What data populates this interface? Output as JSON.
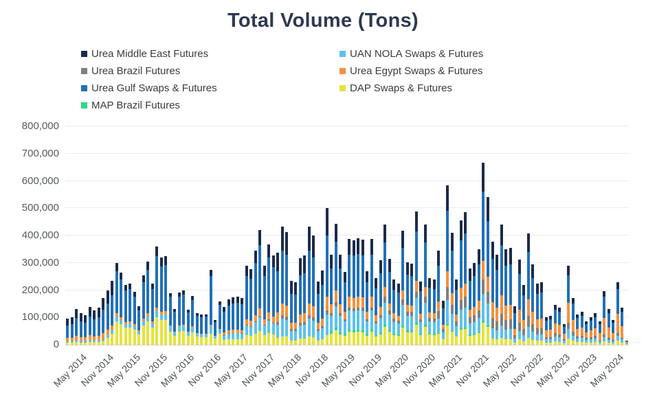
{
  "chart_data": {
    "type": "bar",
    "stacked": true,
    "title": "Total Volume (Tons)",
    "values_unit": "tons",
    "y_axis": {
      "min": 0,
      "max": 800000,
      "tick_interval": 100000,
      "tick_labels": [
        "0",
        "100,000",
        "200,000",
        "300,000",
        "400,000",
        "500,000",
        "600,000",
        "700,000",
        "800,000"
      ]
    },
    "x_axis": {
      "tick_labels": [
        "May 2014",
        "Nov 2014",
        "May 2015",
        "Nov 2015",
        "May 2016",
        "Nov 2016",
        "May 2017",
        "Nov 2017",
        "May 2018",
        "Nov 2018",
        "May 2019",
        "Nov 2019",
        "May 2020",
        "Nov 2020",
        "May 2021",
        "Nov 2021",
        "May 2022",
        "Nov 2022",
        "May 2023",
        "Nov 2023",
        "May 2024"
      ]
    },
    "categories": [
      "Feb 2014",
      "Mar 2014",
      "Apr 2014",
      "May 2014",
      "Jun 2014",
      "Jul 2014",
      "Aug 2014",
      "Sep 2014",
      "Oct 2014",
      "Nov 2014",
      "Dec 2014",
      "Jan 2015",
      "Feb 2015",
      "Mar 2015",
      "Apr 2015",
      "May 2015",
      "Jun 2015",
      "Jul 2015",
      "Aug 2015",
      "Sep 2015",
      "Oct 2015",
      "Nov 2015",
      "Dec 2015",
      "Jan 2016",
      "Feb 2016",
      "Mar 2016",
      "Apr 2016",
      "May 2016",
      "Jun 2016",
      "Jul 2016",
      "Aug 2016",
      "Sep 2016",
      "Oct 2016",
      "Nov 2016",
      "Dec 2016",
      "Jan 2017",
      "Feb 2017",
      "Mar 2017",
      "Apr 2017",
      "May 2017",
      "Jun 2017",
      "Jul 2017",
      "Aug 2017",
      "Sep 2017",
      "Oct 2017",
      "Nov 2017",
      "Dec 2017",
      "Jan 2018",
      "Feb 2018",
      "Mar 2018",
      "Apr 2018",
      "May 2018",
      "Jun 2018",
      "Jul 2018",
      "Aug 2018",
      "Sep 2018",
      "Oct 2018",
      "Nov 2018",
      "Dec 2018",
      "Jan 2019",
      "Feb 2019",
      "Mar 2019",
      "Apr 2019",
      "May 2019",
      "Jun 2019",
      "Jul 2019",
      "Aug 2019",
      "Sep 2019",
      "Oct 2019",
      "Nov 2019",
      "Dec 2019",
      "Jan 2020",
      "Feb 2020",
      "Mar 2020",
      "Apr 2020",
      "May 2020",
      "Jun 2020",
      "Jul 2020",
      "Aug 2020",
      "Sep 2020",
      "Oct 2020",
      "Nov 2020",
      "Dec 2020",
      "Jan 2021",
      "Feb 2021",
      "Mar 2021",
      "Apr 2021",
      "May 2021",
      "Jun 2021",
      "Jul 2021",
      "Aug 2021",
      "Sep 2021",
      "Oct 2021",
      "Nov 2021",
      "Dec 2021",
      "Jan 2022",
      "Feb 2022",
      "Mar 2022",
      "Apr 2022",
      "May 2022",
      "Jun 2022",
      "Jul 2022",
      "Aug 2022",
      "Sep 2022",
      "Oct 2022",
      "Nov 2022",
      "Dec 2022",
      "Jan 2023",
      "Feb 2023",
      "Mar 2023",
      "Apr 2023",
      "May 2023",
      "Jun 2023",
      "Jul 2023",
      "Aug 2023",
      "Sep 2023",
      "Oct 2023",
      "Nov 2023",
      "Dec 2023",
      "Jan 2024",
      "Feb 2024",
      "Mar 2024",
      "Apr 2024",
      "May 2024",
      "Jun 2024",
      "Jul 2024"
    ],
    "stack_order": "bottom_to_top",
    "series": [
      {
        "name": "DAP Swaps & Futures",
        "color": "#e6e33c",
        "values": [
          7000,
          7000,
          9000,
          8000,
          8000,
          10000,
          9000,
          9000,
          12000,
          25000,
          40000,
          85000,
          75000,
          62000,
          63000,
          55000,
          39000,
          71000,
          85000,
          63000,
          101000,
          90000,
          91000,
          48000,
          33000,
          48000,
          50000,
          32000,
          45000,
          29000,
          28000,
          28000,
          40000,
          23000,
          40000,
          17000,
          20000,
          21000,
          21000,
          20000,
          35000,
          33000,
          41000,
          50000,
          35000,
          44000,
          39000,
          24000,
          30000,
          29000,
          16000,
          16000,
          22000,
          23000,
          30000,
          28000,
          16000,
          19000,
          35000,
          40000,
          53000,
          39000,
          32000,
          47000,
          46000,
          47000,
          46000,
          32000,
          47000,
          29000,
          37000,
          66000,
          47000,
          36000,
          34000,
          63000,
          45000,
          45000,
          73000,
          35000,
          66000,
          37000,
          36000,
          41000,
          19000,
          70000,
          49000,
          29000,
          55000,
          58000,
          34000,
          36000,
          42000,
          80000,
          65000,
          23000,
          20000,
          26000,
          21000,
          21000,
          8000,
          19000,
          13000,
          24000,
          18000,
          14000,
          14000,
          8000,
          8000,
          12000,
          11000,
          6000,
          23000,
          14000,
          9000,
          10000,
          7000,
          8000,
          9000,
          5000,
          12000,
          8000,
          5000,
          14000,
          8000,
          3000
        ]
      },
      {
        "name": "MAP Brazil Futures",
        "color": "#2bd889",
        "values": [
          0,
          0,
          0,
          0,
          0,
          0,
          0,
          0,
          0,
          0,
          0,
          0,
          0,
          0,
          0,
          0,
          0,
          0,
          0,
          0,
          0,
          0,
          0,
          0,
          0,
          0,
          0,
          0,
          0,
          0,
          0,
          0,
          0,
          0,
          0,
          0,
          0,
          0,
          0,
          0,
          0,
          0,
          0,
          0,
          0,
          0,
          0,
          0,
          0,
          0,
          0,
          0,
          0,
          0,
          0,
          0,
          0,
          0,
          0,
          7000,
          9000,
          7000,
          5000,
          8000,
          8000,
          8000,
          8000,
          5000,
          8000,
          5000,
          6000,
          9000,
          6000,
          5000,
          4000,
          8000,
          6000,
          6000,
          10000,
          5000,
          9000,
          5000,
          5000,
          3000,
          2000,
          6000,
          4000,
          2000,
          5000,
          5000,
          3000,
          3000,
          4000,
          7000,
          5000,
          0,
          0,
          0,
          0,
          0,
          0,
          0,
          0,
          0,
          0,
          0,
          0,
          0,
          0,
          0,
          0,
          0,
          0,
          0,
          0,
          0,
          0,
          0,
          0,
          0,
          0,
          0,
          0,
          0,
          0,
          0
        ]
      },
      {
        "name": "UAN NOLA Swaps & Futures",
        "color": "#5bc2ee",
        "values": [
          5000,
          5000,
          6000,
          6000,
          5000,
          7000,
          6000,
          7000,
          8000,
          10000,
          12000,
          18000,
          16000,
          13000,
          14000,
          12000,
          8000,
          15000,
          18000,
          14000,
          22000,
          19000,
          20000,
          19000,
          13000,
          19000,
          20000,
          13000,
          18000,
          12000,
          11000,
          11000,
          27000,
          9000,
          16000,
          17000,
          20000,
          21000,
          21000,
          20000,
          35000,
          33000,
          41000,
          50000,
          35000,
          44000,
          39000,
          50000,
          65000,
          62000,
          35000,
          35000,
          48000,
          49000,
          65000,
          60000,
          35000,
          41000,
          75000,
          59000,
          80000,
          59000,
          48000,
          70000,
          69000,
          70000,
          69000,
          49000,
          70000,
          44000,
          56000,
          79000,
          57000,
          43000,
          40000,
          75000,
          55000,
          54000,
          88000,
          42000,
          79000,
          44000,
          43000,
          52000,
          24000,
          88000,
          61000,
          36000,
          68000,
          73000,
          42000,
          45000,
          52000,
          100000,
          81000,
          38000,
          33000,
          44000,
          35000,
          36000,
          14000,
          31000,
          22000,
          41000,
          29000,
          23000,
          23000,
          12000,
          13000,
          18000,
          16000,
          9000,
          35000,
          20000,
          13000,
          14000,
          10000,
          12000,
          14000,
          7000,
          16000,
          10000,
          7000,
          18000,
          11000,
          2000
        ]
      },
      {
        "name": "Urea Brazil Futures",
        "color": "#808080",
        "values": [
          0,
          0,
          0,
          0,
          0,
          0,
          0,
          0,
          0,
          0,
          0,
          0,
          0,
          0,
          0,
          0,
          0,
          0,
          0,
          0,
          0,
          0,
          0,
          0,
          0,
          0,
          0,
          0,
          0,
          0,
          0,
          0,
          0,
          0,
          0,
          1000,
          2000,
          2000,
          2000,
          2000,
          3000,
          3000,
          3000,
          4000,
          3000,
          4000,
          3000,
          10000,
          13000,
          12000,
          7000,
          7000,
          10000,
          10000,
          13000,
          12000,
          7000,
          8000,
          15000,
          10000,
          13000,
          10000,
          8000,
          12000,
          11000,
          12000,
          12000,
          8000,
          12000,
          7000,
          9000,
          22000,
          16000,
          12000,
          11000,
          21000,
          15000,
          15000,
          24000,
          12000,
          22000,
          12000,
          12000,
          28000,
          13000,
          47000,
          33000,
          19000,
          36000,
          39000,
          22000,
          24000,
          28000,
          53000,
          43000,
          38000,
          33000,
          44000,
          35000,
          36000,
          14000,
          31000,
          22000,
          41000,
          29000,
          23000,
          23000,
          8000,
          8000,
          12000,
          11000,
          6000,
          23000,
          14000,
          9000,
          10000,
          7000,
          8000,
          9000,
          4000,
          10000,
          7000,
          5000,
          12000,
          7000,
          0
        ]
      },
      {
        "name": "Urea Egypt Swaps & Futures",
        "color": "#f6913d",
        "values": [
          12000,
          13000,
          17000,
          15000,
          14000,
          18000,
          16000,
          17000,
          22000,
          20000,
          18000,
          12000,
          10000,
          9000,
          9000,
          8000,
          6000,
          10000,
          12000,
          9000,
          14000,
          13000,
          13000,
          4000,
          3000,
          4000,
          4000,
          3000,
          4000,
          2000,
          2000,
          2000,
          5000,
          2000,
          3000,
          10000,
          12000,
          12000,
          12000,
          12000,
          20000,
          19000,
          24000,
          29000,
          20000,
          26000,
          23000,
          34000,
          43000,
          41000,
          23000,
          23000,
          32000,
          33000,
          43000,
          40000,
          23000,
          27000,
          50000,
          33000,
          44000,
          33000,
          27000,
          39000,
          38000,
          39000,
          39000,
          27000,
          39000,
          24000,
          31000,
          35000,
          25000,
          19000,
          18000,
          33000,
          24000,
          24000,
          39000,
          19000,
          35000,
          20000,
          19000,
          34000,
          16000,
          58000,
          41000,
          24000,
          46000,
          48000,
          28000,
          30000,
          35000,
          67000,
          54000,
          57000,
          50000,
          66000,
          53000,
          53000,
          21000,
          47000,
          33000,
          61000,
          44000,
          34000,
          35000,
          25000,
          27000,
          37000,
          34000,
          19000,
          73000,
          43000,
          28000,
          30000,
          22000,
          25000,
          29000,
          26000,
          59000,
          39000,
          27000,
          69000,
          41000,
          5000
        ]
      },
      {
        "name": "Urea Gulf Swaps & Futures",
        "color": "#2170b8",
        "values": [
          47000,
          50000,
          66000,
          57000,
          54000,
          69000,
          63000,
          68000,
          86000,
          95000,
          110000,
          155000,
          138000,
          114000,
          117000,
          100000,
          73000,
          133000,
          160000,
          117000,
          187000,
          166000,
          169000,
          104000,
          72000,
          106000,
          110000,
          70000,
          97000,
          63000,
          61000,
          62000,
          180000,
          49000,
          87000,
          75000,
          90000,
          95000,
          97000,
          94000,
          158000,
          153000,
          190000,
          232000,
          159000,
          202000,
          180000,
          151000,
          195000,
          186000,
          106000,
          103000,
          142000,
          146000,
          195000,
          180000,
          104000,
          123000,
          225000,
          131000,
          178000,
          132000,
          108000,
          154000,
          154000,
          155000,
          153000,
          108000,
          154000,
          98000,
          124000,
          163000,
          117000,
          87000,
          84000,
          155000,
          113000,
          109000,
          182000,
          84000,
          163000,
          90000,
          89000,
          132000,
          60000,
          222000,
          156000,
          92000,
          172000,
          184000,
          106000,
          114000,
          133000,
          254000,
          206000,
          158000,
          138000,
          185000,
          146000,
          149000,
          59000,
          131000,
          91000,
          172000,
          124000,
          93000,
          96000,
          36000,
          37000,
          50000,
          49000,
          26000,
          101000,
          59000,
          40000,
          42000,
          30000,
          35000,
          40000,
          34000,
          78000,
          52000,
          36000,
          92000,
          53000,
          5000
        ]
      },
      {
        "name": "Urea Middle East Futures",
        "color": "#1b2b4b",
        "values": [
          24000,
          25000,
          32000,
          29000,
          27000,
          34000,
          31000,
          34000,
          42000,
          50000,
          55000,
          30000,
          26000,
          22000,
          22000,
          20000,
          14000,
          26000,
          30000,
          22000,
          36000,
          32000,
          32000,
          15000,
          11000,
          15000,
          16000,
          10000,
          14000,
          9000,
          9000,
          9000,
          22000,
          7000,
          13000,
          18000,
          21000,
          22000,
          23000,
          22000,
          38000,
          36000,
          45000,
          54000,
          38000,
          48000,
          42000,
          67000,
          86000,
          82000,
          47000,
          46000,
          64000,
          65000,
          86000,
          80000,
          46000,
          55000,
          100000,
          50000,
          66000,
          49000,
          40000,
          58000,
          57000,
          58000,
          58000,
          41000,
          58000,
          36000,
          47000,
          66000,
          47000,
          36000,
          34000,
          63000,
          45000,
          45000,
          73000,
          35000,
          66000,
          37000,
          36000,
          55000,
          26000,
          94000,
          66000,
          38000,
          73000,
          78000,
          45000,
          48000,
          56000,
          107000,
          87000,
          64000,
          56000,
          75000,
          60000,
          60000,
          24000,
          53000,
          37000,
          69000,
          50000,
          38000,
          39000,
          12000,
          13000,
          18000,
          16000,
          9000,
          35000,
          20000,
          13000,
          14000,
          10000,
          12000,
          14000,
          9000,
          22000,
          14000,
          10000,
          25000,
          15000,
          0
        ]
      }
    ]
  },
  "legend": {
    "items": [
      {
        "label": "Urea Middle East Futures",
        "color": "#1b2b4b"
      },
      {
        "label": "UAN NOLA Swaps & Futures",
        "color": "#5bc2ee"
      },
      {
        "label": "Urea Brazil Futures",
        "color": "#808080"
      },
      {
        "label": "Urea Egypt Swaps & Futures",
        "color": "#f6913d"
      },
      {
        "label": "Urea Gulf Swaps & Futures",
        "color": "#2170b8"
      },
      {
        "label": "DAP Swaps & Futures",
        "color": "#e6e33c"
      },
      {
        "label": "MAP Brazil Futures",
        "color": "#2bd889"
      }
    ]
  }
}
